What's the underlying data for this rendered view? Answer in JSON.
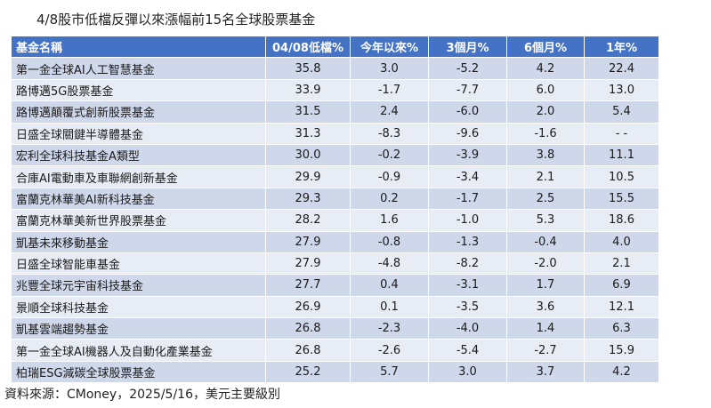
{
  "title": "4/8股市低檔反彈以來漲幅前15名全球股票基金",
  "table": {
    "headers": [
      "基金名稱",
      "04/08低檔%",
      "今年以來%",
      "3個月%",
      "6個月%",
      "1年%"
    ],
    "rows": [
      [
        "第一金全球AI人工智慧基金",
        "35.8",
        "3.0",
        "-5.2",
        "4.2",
        "22.4"
      ],
      [
        "路博邁5G股票基金",
        "33.9",
        "-1.7",
        "-7.7",
        "6.0",
        "13.0"
      ],
      [
        "路博邁顛覆式創新股票基金",
        "31.5",
        "2.4",
        "-6.0",
        "2.0",
        "5.4"
      ],
      [
        "日盛全球關鍵半導體基金",
        "31.3",
        "-8.3",
        "-9.6",
        "-1.6",
        "- -"
      ],
      [
        "宏利全球科技基金A類型",
        "30.0",
        "-0.2",
        "-3.9",
        "3.8",
        "11.1"
      ],
      [
        "合庫AI電動車及車聯網創新基金",
        "29.9",
        "-0.9",
        "-3.4",
        "2.1",
        "10.5"
      ],
      [
        "富蘭克林華美AI新科技基金",
        "29.3",
        "0.2",
        "-1.7",
        "2.5",
        "15.5"
      ],
      [
        "富蘭克林華美新世界股票基金",
        "28.2",
        "1.6",
        "-1.0",
        "5.3",
        "18.6"
      ],
      [
        "凱基未來移動基金",
        "27.9",
        "-0.8",
        "-1.3",
        "-0.4",
        "4.0"
      ],
      [
        "日盛全球智能車基金",
        "27.9",
        "-4.8",
        "-8.2",
        "-2.0",
        "2.1"
      ],
      [
        "兆豐全球元宇宙科技基金",
        "27.7",
        "0.4",
        "-3.1",
        "1.7",
        "6.9"
      ],
      [
        "景順全球科技基金",
        "26.9",
        "0.1",
        "-3.5",
        "3.6",
        "12.1"
      ],
      [
        "凱基雲端趨勢基金",
        "26.8",
        "-2.3",
        "-4.0",
        "1.4",
        "6.3"
      ],
      [
        "第一金全球AI機器人及自動化產業基金",
        "26.8",
        "-2.6",
        "-5.4",
        "-2.7",
        "15.9"
      ],
      [
        "柏瑞ESG減碳全球股票基金",
        "25.2",
        "5.7",
        "3.0",
        "3.7",
        "4.2"
      ]
    ]
  },
  "source": "資料來源：CMoney，2025/5/16，美元主要級別",
  "colors": {
    "header_bg": "#4472c4",
    "header_text": "#ffffff",
    "row_odd": "#cfd7ea",
    "row_even": "#e8ecf5"
  }
}
